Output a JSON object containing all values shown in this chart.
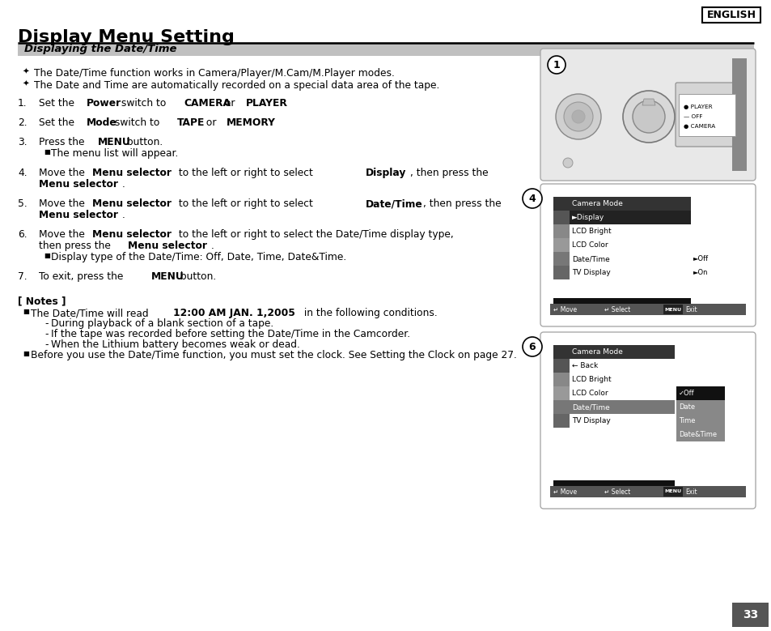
{
  "page_bg": "#ffffff",
  "english_label": "ENGLISH",
  "title": "Display Menu Setting",
  "subtitle": "Displaying the Date/Time",
  "page_num": "33",
  "bullets": [
    "The Date/Time function works in Camera/Player/M.Cam/M.Player modes.",
    "The Date and Time are automatically recorded on a special data area of the tape."
  ],
  "notes_header": "[ Notes ]",
  "note1_subs": [
    "During playback of a blank section of a tape.",
    "If the tape was recorded before setting the Date/Time in the Camcorder.",
    "When the Lithium battery becomes weak or dead."
  ],
  "note2": "Before you use the Date/Time function, you must set the clock. See Setting the Clock on page 27.",
  "menu4_items": [
    "Camera Mode",
    "►Display",
    "LCD Bright",
    "LCD Color",
    "Date/Time",
    "TV Display"
  ],
  "menu4_sub": [
    "►Off",
    "►On"
  ],
  "menu6_items": [
    "Camera Mode",
    "← Back",
    "LCD Bright",
    "LCD Color",
    "Date/Time",
    "TV Display"
  ],
  "menu6_sub": [
    "✓Off",
    "Date",
    "Time",
    "Date&Time"
  ],
  "menu_bottom": [
    "Move",
    "Select",
    "MENU",
    "Exit"
  ]
}
